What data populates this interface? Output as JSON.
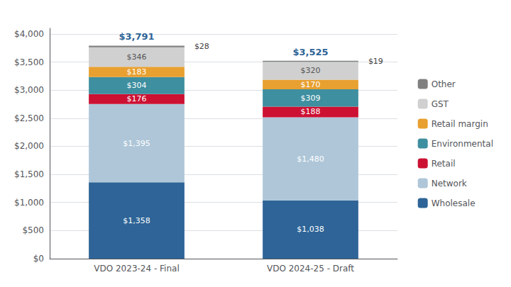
{
  "chart_data": {
    "type": "bar",
    "stacked": true,
    "categories": [
      "VDO 2023-24 - Final",
      "VDO 2024-25 - Draft"
    ],
    "series": [
      {
        "name": "Wholesale",
        "color": "#2e6497",
        "values": [
          1358,
          1038
        ],
        "value_labels": [
          "$1,358",
          "$1,038"
        ]
      },
      {
        "name": "Network",
        "color": "#aec6d8",
        "values": [
          1395,
          1480
        ],
        "value_labels": [
          "$1,395",
          "$1,480"
        ]
      },
      {
        "name": "Retail",
        "color": "#cc1133",
        "values": [
          176,
          188
        ],
        "value_labels": [
          "$176",
          "$188"
        ]
      },
      {
        "name": "Environmental",
        "color": "#3e8fa0",
        "values": [
          304,
          309
        ],
        "value_labels": [
          "$304",
          "$309"
        ]
      },
      {
        "name": "Retail margin",
        "color": "#e8a030",
        "values": [
          183,
          170
        ],
        "value_labels": [
          "$183",
          "$170"
        ]
      },
      {
        "name": "GST",
        "color": "#d0d0d0",
        "values": [
          346,
          320
        ],
        "value_labels": [
          "$346",
          "$320"
        ]
      },
      {
        "name": "Other",
        "color": "#808080",
        "values": [
          28,
          19
        ],
        "value_labels": [
          "$28",
          "$19"
        ]
      }
    ],
    "totals": [
      3791,
      3525
    ],
    "total_labels": [
      "$3,791",
      "$3,525"
    ],
    "total_color": "#2e6497",
    "data_labels": true,
    "ylim": [
      0,
      4100
    ],
    "yticks": [
      {
        "value": 0,
        "label": "$0"
      },
      {
        "value": 500,
        "label": "$500"
      },
      {
        "value": 1000,
        "label": "$1,000"
      },
      {
        "value": 1500,
        "label": "$1,500"
      },
      {
        "value": 2000,
        "label": "$2,000"
      },
      {
        "value": 2500,
        "label": "$2,500"
      },
      {
        "value": 3000,
        "label": "$3,000"
      },
      {
        "value": 3500,
        "label": "$3,500"
      },
      {
        "value": 4000,
        "label": "$4,000"
      }
    ],
    "grid": true,
    "legend": "right"
  }
}
